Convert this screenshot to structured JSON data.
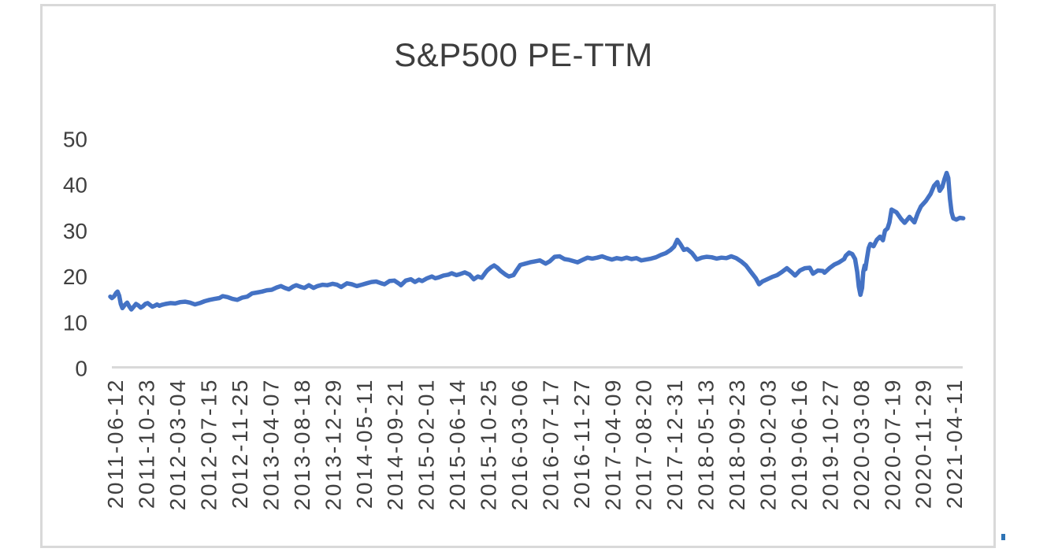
{
  "chart_data": {
    "type": "line",
    "title": "S&P500 PE-TTM",
    "legend": "none",
    "grid": "zero-baseline-only",
    "ylabel": "",
    "xlabel": "",
    "ylim": [
      0,
      50
    ],
    "y_ticks": [
      50,
      40,
      30,
      20,
      10,
      0
    ],
    "x_range": [
      "2011-05-22",
      "2021-05-21"
    ],
    "x_ticks": [
      "2011-06-12",
      "2011-10-23",
      "2012-03-04",
      "2012-07-15",
      "2012-11-25",
      "2013-04-07",
      "2013-08-18",
      "2013-12-29",
      "2014-05-11",
      "2014-09-21",
      "2015-02-01",
      "2015-06-14",
      "2015-10-25",
      "2016-03-06",
      "2016-07-17",
      "2016-11-27",
      "2017-04-09",
      "2017-08-20",
      "2017-12-31",
      "2018-05-13",
      "2018-09-23",
      "2019-02-03",
      "2019-06-16",
      "2019-10-27",
      "2020-03-08",
      "2020-07-19",
      "2020-11-29",
      "2021-04-11"
    ],
    "series": [
      {
        "name": "S&P500 PE-TTM",
        "points": [
          [
            "2011-05-22",
            15.6
          ],
          [
            "2011-05-29",
            15.3
          ],
          [
            "2011-06-08",
            15.7
          ],
          [
            "2011-06-16",
            16.4
          ],
          [
            "2011-06-22",
            16.7
          ],
          [
            "2011-06-29",
            15.8
          ],
          [
            "2011-07-06",
            14.0
          ],
          [
            "2011-07-13",
            13.1
          ],
          [
            "2011-07-23",
            13.8
          ],
          [
            "2011-08-02",
            14.3
          ],
          [
            "2011-08-12",
            13.4
          ],
          [
            "2011-08-20",
            12.8
          ],
          [
            "2011-08-30",
            13.4
          ],
          [
            "2011-09-09",
            14.0
          ],
          [
            "2011-09-19",
            13.7
          ],
          [
            "2011-09-29",
            13.2
          ],
          [
            "2011-10-09",
            13.5
          ],
          [
            "2011-10-19",
            14.0
          ],
          [
            "2011-10-29",
            14.2
          ],
          [
            "2011-11-08",
            13.8
          ],
          [
            "2011-11-18",
            13.4
          ],
          [
            "2011-11-28",
            13.6
          ],
          [
            "2011-12-08",
            13.9
          ],
          [
            "2011-12-18",
            13.6
          ],
          [
            "2011-12-28",
            13.8
          ],
          [
            "2012-01-13",
            14.0
          ],
          [
            "2012-02-03",
            14.2
          ],
          [
            "2012-02-24",
            14.1
          ],
          [
            "2012-03-16",
            14.4
          ],
          [
            "2012-04-06",
            14.5
          ],
          [
            "2012-04-27",
            14.3
          ],
          [
            "2012-05-18",
            13.9
          ],
          [
            "2012-06-08",
            14.2
          ],
          [
            "2012-06-29",
            14.6
          ],
          [
            "2012-07-20",
            14.9
          ],
          [
            "2012-08-10",
            15.1
          ],
          [
            "2012-08-31",
            15.3
          ],
          [
            "2012-09-14",
            15.7
          ],
          [
            "2012-10-05",
            15.5
          ],
          [
            "2012-10-26",
            15.1
          ],
          [
            "2012-11-16",
            14.9
          ],
          [
            "2012-12-07",
            15.4
          ],
          [
            "2012-12-28",
            15.6
          ],
          [
            "2013-01-18",
            16.3
          ],
          [
            "2013-02-08",
            16.5
          ],
          [
            "2013-03-01",
            16.7
          ],
          [
            "2013-03-22",
            17.0
          ],
          [
            "2013-04-12",
            17.1
          ],
          [
            "2013-05-03",
            17.6
          ],
          [
            "2013-05-21",
            17.9
          ],
          [
            "2013-06-07",
            17.5
          ],
          [
            "2013-06-24",
            17.2
          ],
          [
            "2013-07-12",
            17.8
          ],
          [
            "2013-07-26",
            18.1
          ],
          [
            "2013-08-16",
            17.7
          ],
          [
            "2013-08-30",
            17.5
          ],
          [
            "2013-09-18",
            18.1
          ],
          [
            "2013-10-08",
            17.5
          ],
          [
            "2013-10-25",
            17.9
          ],
          [
            "2013-11-15",
            18.2
          ],
          [
            "2013-12-06",
            18.1
          ],
          [
            "2013-12-29",
            18.4
          ],
          [
            "2014-01-17",
            18.2
          ],
          [
            "2014-02-03",
            17.7
          ],
          [
            "2014-02-28",
            18.5
          ],
          [
            "2014-03-21",
            18.3
          ],
          [
            "2014-04-11",
            17.9
          ],
          [
            "2014-05-02",
            18.2
          ],
          [
            "2014-05-23",
            18.5
          ],
          [
            "2014-06-13",
            18.8
          ],
          [
            "2014-07-03",
            18.9
          ],
          [
            "2014-07-25",
            18.5
          ],
          [
            "2014-08-08",
            18.3
          ],
          [
            "2014-08-29",
            19.0
          ],
          [
            "2014-09-19",
            19.1
          ],
          [
            "2014-10-10",
            18.4
          ],
          [
            "2014-10-17",
            18.1
          ],
          [
            "2014-11-07",
            19.1
          ],
          [
            "2014-11-28",
            19.4
          ],
          [
            "2014-12-16",
            18.8
          ],
          [
            "2015-01-02",
            19.3
          ],
          [
            "2015-01-16",
            19.0
          ],
          [
            "2015-02-06",
            19.6
          ],
          [
            "2015-02-27",
            20.0
          ],
          [
            "2015-03-13",
            19.6
          ],
          [
            "2015-03-27",
            19.8
          ],
          [
            "2015-04-17",
            20.2
          ],
          [
            "2015-05-08",
            20.4
          ],
          [
            "2015-05-22",
            20.7
          ],
          [
            "2015-06-12",
            20.3
          ],
          [
            "2015-06-26",
            20.5
          ],
          [
            "2015-07-17",
            20.9
          ],
          [
            "2015-08-07",
            20.4
          ],
          [
            "2015-08-25",
            19.4
          ],
          [
            "2015-09-11",
            20.0
          ],
          [
            "2015-09-28",
            19.7
          ],
          [
            "2015-10-16",
            21.0
          ],
          [
            "2015-10-23",
            21.4
          ],
          [
            "2015-11-06",
            22.0
          ],
          [
            "2015-11-20",
            22.4
          ],
          [
            "2015-12-04",
            21.9
          ],
          [
            "2015-12-18",
            21.2
          ],
          [
            "2016-01-08",
            20.4
          ],
          [
            "2016-01-22",
            20.0
          ],
          [
            "2016-02-11",
            20.3
          ],
          [
            "2016-02-26",
            21.5
          ],
          [
            "2016-03-11",
            22.5
          ],
          [
            "2016-04-01",
            22.8
          ],
          [
            "2016-04-22",
            23.1
          ],
          [
            "2016-05-13",
            23.3
          ],
          [
            "2016-06-03",
            23.5
          ],
          [
            "2016-06-27",
            22.8
          ],
          [
            "2016-07-15",
            23.3
          ],
          [
            "2016-08-05",
            24.3
          ],
          [
            "2016-08-26",
            24.4
          ],
          [
            "2016-09-16",
            23.8
          ],
          [
            "2016-10-07",
            23.6
          ],
          [
            "2016-10-28",
            23.3
          ],
          [
            "2016-11-11",
            23.1
          ],
          [
            "2016-12-02",
            23.6
          ],
          [
            "2016-12-23",
            24.1
          ],
          [
            "2017-01-13",
            23.9
          ],
          [
            "2017-02-03",
            24.1
          ],
          [
            "2017-02-24",
            24.4
          ],
          [
            "2017-03-17",
            24.0
          ],
          [
            "2017-04-07",
            23.7
          ],
          [
            "2017-04-28",
            24.0
          ],
          [
            "2017-05-19",
            23.8
          ],
          [
            "2017-06-09",
            24.1
          ],
          [
            "2017-06-30",
            23.8
          ],
          [
            "2017-07-21",
            24.0
          ],
          [
            "2017-08-11",
            23.5
          ],
          [
            "2017-09-01",
            23.7
          ],
          [
            "2017-09-22",
            23.9
          ],
          [
            "2017-10-13",
            24.2
          ],
          [
            "2017-11-03",
            24.7
          ],
          [
            "2017-11-24",
            25.1
          ],
          [
            "2017-12-15",
            25.8
          ],
          [
            "2017-12-29",
            26.5
          ],
          [
            "2018-01-12",
            28.0
          ],
          [
            "2018-01-26",
            27.0
          ],
          [
            "2018-02-09",
            25.8
          ],
          [
            "2018-02-23",
            26.0
          ],
          [
            "2018-03-16",
            25.1
          ],
          [
            "2018-04-06",
            23.7
          ],
          [
            "2018-04-27",
            24.1
          ],
          [
            "2018-05-18",
            24.3
          ],
          [
            "2018-06-08",
            24.2
          ],
          [
            "2018-06-29",
            23.9
          ],
          [
            "2018-07-20",
            24.1
          ],
          [
            "2018-08-10",
            24.0
          ],
          [
            "2018-08-31",
            24.4
          ],
          [
            "2018-09-21",
            24.0
          ],
          [
            "2018-10-12",
            23.3
          ],
          [
            "2018-11-02",
            22.4
          ],
          [
            "2018-11-23",
            21.0
          ],
          [
            "2018-12-14",
            19.6
          ],
          [
            "2018-12-28",
            18.3
          ],
          [
            "2019-01-11",
            18.9
          ],
          [
            "2019-02-01",
            19.4
          ],
          [
            "2019-02-22",
            19.9
          ],
          [
            "2019-03-15",
            20.3
          ],
          [
            "2019-04-05",
            21.0
          ],
          [
            "2019-04-26",
            21.8
          ],
          [
            "2019-05-17",
            20.9
          ],
          [
            "2019-05-31",
            20.2
          ],
          [
            "2019-06-21",
            21.3
          ],
          [
            "2019-07-12",
            21.8
          ],
          [
            "2019-08-02",
            21.9
          ],
          [
            "2019-08-16",
            20.6
          ],
          [
            "2019-09-06",
            21.3
          ],
          [
            "2019-09-27",
            21.2
          ],
          [
            "2019-10-04",
            20.8
          ],
          [
            "2019-10-25",
            21.8
          ],
          [
            "2019-11-15",
            22.6
          ],
          [
            "2019-12-06",
            23.1
          ],
          [
            "2019-12-27",
            23.8
          ],
          [
            "2020-01-03",
            24.5
          ],
          [
            "2020-01-17",
            25.2
          ],
          [
            "2020-01-31",
            24.9
          ],
          [
            "2020-02-12",
            23.8
          ],
          [
            "2020-02-21",
            21.0
          ],
          [
            "2020-02-28",
            17.8
          ],
          [
            "2020-03-06",
            16.0
          ],
          [
            "2020-03-13",
            17.5
          ],
          [
            "2020-03-18",
            21.0
          ],
          [
            "2020-03-24",
            22.4
          ],
          [
            "2020-03-27",
            21.6
          ],
          [
            "2020-04-03",
            24.0
          ],
          [
            "2020-04-10",
            26.2
          ],
          [
            "2020-04-17",
            27.1
          ],
          [
            "2020-05-01",
            26.6
          ],
          [
            "2020-05-15",
            28.0
          ],
          [
            "2020-05-29",
            28.7
          ],
          [
            "2020-06-10",
            27.9
          ],
          [
            "2020-06-19",
            30.0
          ],
          [
            "2020-06-30",
            30.5
          ],
          [
            "2020-07-08",
            31.8
          ],
          [
            "2020-07-17",
            34.6
          ],
          [
            "2020-08-07",
            34.0
          ],
          [
            "2020-08-28",
            32.5
          ],
          [
            "2020-09-11",
            31.7
          ],
          [
            "2020-10-02",
            33.0
          ],
          [
            "2020-10-23",
            31.8
          ],
          [
            "2020-11-06",
            33.8
          ],
          [
            "2020-11-20",
            35.3
          ],
          [
            "2020-12-11",
            36.5
          ],
          [
            "2020-12-31",
            38.0
          ],
          [
            "2021-01-15",
            39.8
          ],
          [
            "2021-01-29",
            40.6
          ],
          [
            "2021-02-08",
            38.7
          ],
          [
            "2021-02-19",
            39.5
          ],
          [
            "2021-03-01",
            41.3
          ],
          [
            "2021-03-10",
            42.6
          ],
          [
            "2021-03-17",
            41.5
          ],
          [
            "2021-03-24",
            37.0
          ],
          [
            "2021-03-31",
            34.0
          ],
          [
            "2021-04-07",
            32.7
          ],
          [
            "2021-04-21",
            32.4
          ],
          [
            "2021-05-05",
            32.8
          ],
          [
            "2021-05-20",
            32.7
          ]
        ]
      }
    ],
    "colors": {
      "line": "#4472c4",
      "axis_line": "#d9d9d9",
      "frame_border": "#d9d9d9",
      "tick_text": "#404040",
      "title_text": "#3d3d3d",
      "background": "#ffffff",
      "stray_mark": "#2e74b5"
    }
  }
}
